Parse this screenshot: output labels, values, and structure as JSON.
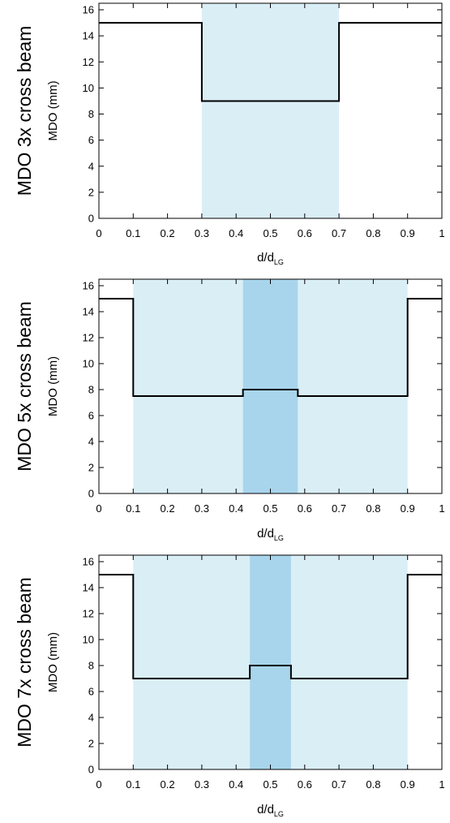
{
  "colors": {
    "band_light": "#daeef6",
    "band_dark": "#a8d5ec",
    "line": "#000000",
    "frame": "#000000"
  },
  "chart_data": [
    {
      "type": "line",
      "row_label": "MDO 3x cross beam",
      "ylabel": "MDO (mm)",
      "xlabel": "d/d",
      "xlabel_sub": "LG",
      "xlim": [
        0,
        1
      ],
      "ylim": [
        0,
        16.5
      ],
      "xticks": [
        0,
        0.1,
        0.2,
        0.3,
        0.4,
        0.5,
        0.6,
        0.7,
        0.8,
        0.9,
        1
      ],
      "xtick_labels": [
        "0",
        "0.1",
        "0.2",
        "0.3",
        "0.4",
        "0.5",
        "0.6",
        "0.7",
        "0.8",
        "0.9",
        "1"
      ],
      "yticks": [
        0,
        2,
        4,
        6,
        8,
        10,
        12,
        14,
        16
      ],
      "ytick_labels": [
        "0",
        "2",
        "4",
        "6",
        "8",
        "10",
        "12",
        "14",
        "16"
      ],
      "bands": [
        {
          "x0": 0.3,
          "x1": 0.7,
          "shade": "light"
        }
      ],
      "series": [
        {
          "x": [
            0,
            0.3,
            0.3,
            0.7,
            0.7,
            1
          ],
          "y": [
            15,
            15,
            9,
            9,
            15,
            15
          ]
        }
      ]
    },
    {
      "type": "line",
      "row_label": "MDO 5x cross beam",
      "ylabel": "MDO (mm)",
      "xlabel": "d/d",
      "xlabel_sub": "LG",
      "xlim": [
        0,
        1
      ],
      "ylim": [
        0,
        16.5
      ],
      "xticks": [
        0,
        0.1,
        0.2,
        0.3,
        0.4,
        0.5,
        0.6,
        0.7,
        0.8,
        0.9,
        1
      ],
      "xtick_labels": [
        "0",
        "0.1",
        "0.2",
        "0.3",
        "0.4",
        "0.5",
        "0.6",
        "0.7",
        "0.8",
        "0.9",
        "1"
      ],
      "yticks": [
        0,
        2,
        4,
        6,
        8,
        10,
        12,
        14,
        16
      ],
      "ytick_labels": [
        "0",
        "2",
        "4",
        "6",
        "8",
        "10",
        "12",
        "14",
        "16"
      ],
      "bands": [
        {
          "x0": 0.1,
          "x1": 0.9,
          "shade": "light"
        },
        {
          "x0": 0.42,
          "x1": 0.58,
          "shade": "dark"
        }
      ],
      "series": [
        {
          "x": [
            0,
            0.1,
            0.1,
            0.42,
            0.42,
            0.58,
            0.58,
            0.9,
            0.9,
            1
          ],
          "y": [
            15,
            15,
            7.5,
            7.5,
            8,
            8,
            7.5,
            7.5,
            15,
            15
          ]
        }
      ]
    },
    {
      "type": "line",
      "row_label": "MDO 7x cross beam",
      "ylabel": "MDO (mm)",
      "xlabel": "d/d",
      "xlabel_sub": "LG",
      "xlim": [
        0,
        1
      ],
      "ylim": [
        0,
        16.5
      ],
      "xticks": [
        0,
        0.1,
        0.2,
        0.3,
        0.4,
        0.5,
        0.6,
        0.7,
        0.8,
        0.9,
        1
      ],
      "xtick_labels": [
        "0",
        "0.1",
        "0.2",
        "0.3",
        "0.4",
        "0.5",
        "0.6",
        "0.7",
        "0.8",
        "0.9",
        "1"
      ],
      "yticks": [
        0,
        2,
        4,
        6,
        8,
        10,
        12,
        14,
        16
      ],
      "ytick_labels": [
        "0",
        "2",
        "4",
        "6",
        "8",
        "10",
        "12",
        "14",
        "16"
      ],
      "bands": [
        {
          "x0": 0.1,
          "x1": 0.9,
          "shade": "light"
        },
        {
          "x0": 0.44,
          "x1": 0.56,
          "shade": "dark"
        }
      ],
      "series": [
        {
          "x": [
            0,
            0.1,
            0.1,
            0.44,
            0.44,
            0.56,
            0.56,
            0.9,
            0.9,
            1
          ],
          "y": [
            15,
            15,
            7,
            7,
            8,
            8,
            7,
            7,
            15,
            15
          ]
        }
      ]
    }
  ]
}
